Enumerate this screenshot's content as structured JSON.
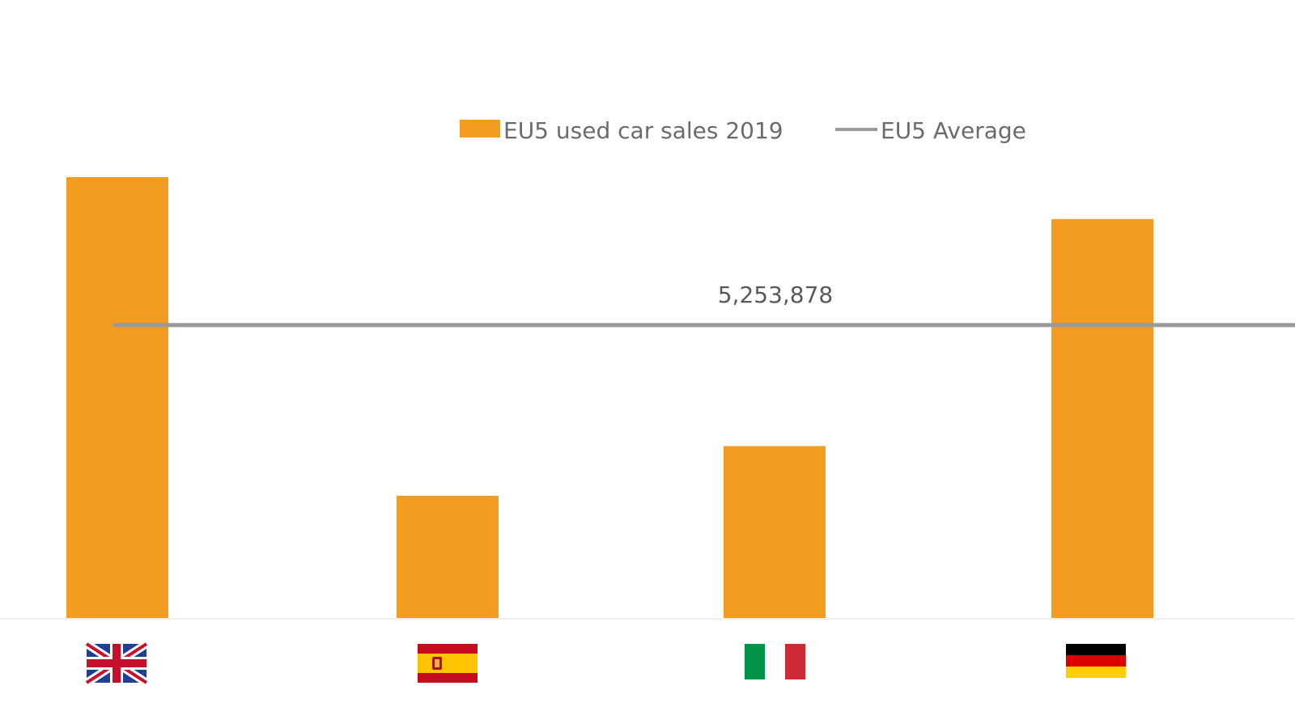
{
  "chart_data": {
    "type": "bar",
    "title": "",
    "xlabel": "",
    "ylabel": "",
    "categories": [
      "uk-flag-icon",
      "spain-flag-icon",
      "italy-flag-icon",
      "germany-flag-icon"
    ],
    "series": [
      {
        "name": "EU5 used car sales 2019",
        "values": [
          7900000,
          2200000,
          3090000,
          7150000
        ],
        "color": "#F39C22"
      }
    ],
    "average": {
      "name": "EU5 Average",
      "value": 5253878,
      "label": "5,253,878",
      "color": "#999999"
    },
    "ylim": [
      0,
      10000000
    ],
    "grid": false,
    "legend": "top-center"
  }
}
